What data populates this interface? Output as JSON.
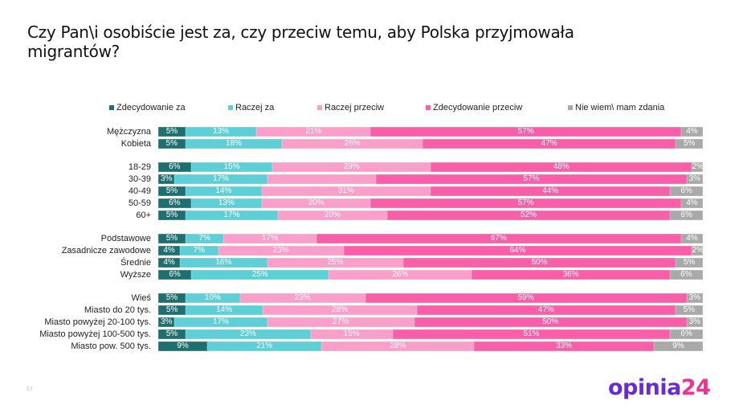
{
  "header": {
    "title": "Czy Pan\\i osobiście jest za, czy przeciw temu, aby Polska przyjmowała migrantów?"
  },
  "footer": {
    "page_number": "27",
    "logo_main": "opinia",
    "logo_num": "24"
  },
  "chart_data": {
    "type": "bar",
    "orientation": "horizontal-stacked-100",
    "title": "Czy Pan\\i osobiście jest za, czy przeciw temu, aby Polska przyjmowała migrantów?",
    "legend_position": "top",
    "series": [
      {
        "name": "Zdecydowanie za",
        "color": "#1f6f70"
      },
      {
        "name": "Raczej za",
        "color": "#5ecfd6"
      },
      {
        "name": "Raczej przeciw",
        "color": "#fa9fca"
      },
      {
        "name": "Zdecydowanie przeciw",
        "color": "#f95fa8"
      },
      {
        "name": "Nie wiem\\ mam zdania",
        "color": "#a9a9a9"
      }
    ],
    "categories": [
      "Mężczyzna",
      "Kobieta",
      "18-29",
      "30-39",
      "40-49",
      "50-59",
      "60+",
      "Podstawowe",
      "Zasadnicze zawodowe",
      "Średnie",
      "Wyższe",
      "Wieś",
      "Miasto do 20 tys.",
      "Miasto powyżej 20-100 tys.",
      "Miasto powyżej 100-500 tys.",
      "Miasto pow. 500 tys."
    ],
    "groups": [
      0,
      0,
      1,
      1,
      1,
      1,
      1,
      2,
      2,
      2,
      2,
      3,
      3,
      3,
      3,
      3
    ],
    "values": [
      [
        5,
        13,
        21,
        57,
        4
      ],
      [
        5,
        18,
        26,
        47,
        5
      ],
      [
        6,
        15,
        29,
        48,
        2
      ],
      [
        3,
        17,
        20,
        57,
        3
      ],
      [
        5,
        14,
        31,
        44,
        6
      ],
      [
        6,
        13,
        20,
        57,
        4
      ],
      [
        5,
        17,
        20,
        52,
        6
      ],
      [
        5,
        7,
        17,
        67,
        4
      ],
      [
        4,
        7,
        23,
        64,
        2
      ],
      [
        4,
        16,
        25,
        50,
        5
      ],
      [
        6,
        25,
        26,
        36,
        6
      ],
      [
        5,
        10,
        23,
        59,
        3
      ],
      [
        5,
        14,
        28,
        47,
        5
      ],
      [
        3,
        17,
        27,
        50,
        3
      ],
      [
        5,
        23,
        15,
        51,
        6
      ],
      [
        9,
        21,
        28,
        33,
        9
      ]
    ],
    "hidden_labels": [
      [
        3,
        2
      ]
    ]
  }
}
